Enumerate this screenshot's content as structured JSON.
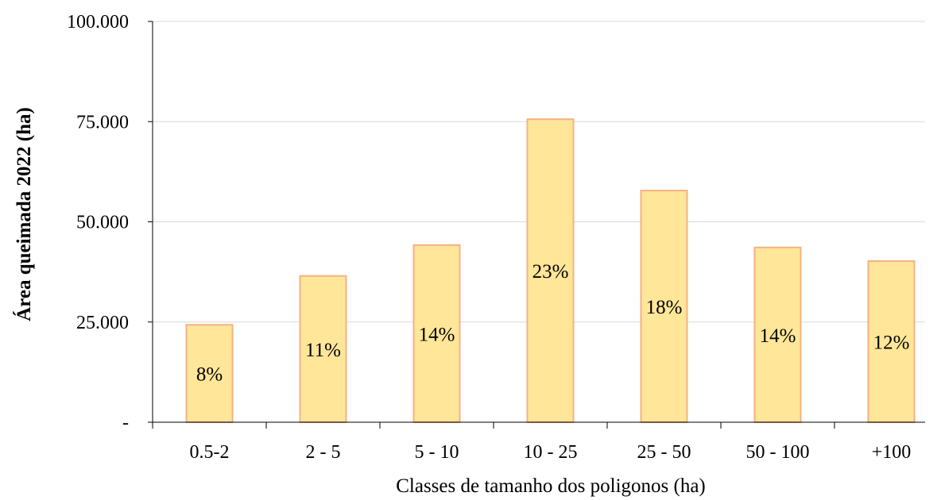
{
  "chart_data": {
    "type": "bar",
    "categories": [
      "0.5-2",
      "2 - 5",
      "5 - 10",
      "10 - 25",
      "25 - 50",
      "50 - 100",
      "+100"
    ],
    "values": [
      24300,
      36500,
      44200,
      75600,
      57800,
      43600,
      40200
    ],
    "data_labels": [
      "8%",
      "11%",
      "14%",
      "23%",
      "18%",
      "14%",
      "12%"
    ],
    "xlabel": "Classes de tamanho dos poligonos (ha)",
    "ylabel": "Área queimada 2022 (ha)",
    "ylim": [
      0,
      100000
    ],
    "yticks": [
      0,
      25000,
      50000,
      75000,
      100000
    ],
    "ytick_labels": [
      "-",
      "25.000",
      "50.000",
      "75.000",
      "100.000"
    ],
    "grid": true,
    "colors": {
      "bar_fill": "#FFE699",
      "bar_stroke": "#F4B183",
      "grid": "#D9D9D9",
      "axis": "#000000"
    }
  }
}
